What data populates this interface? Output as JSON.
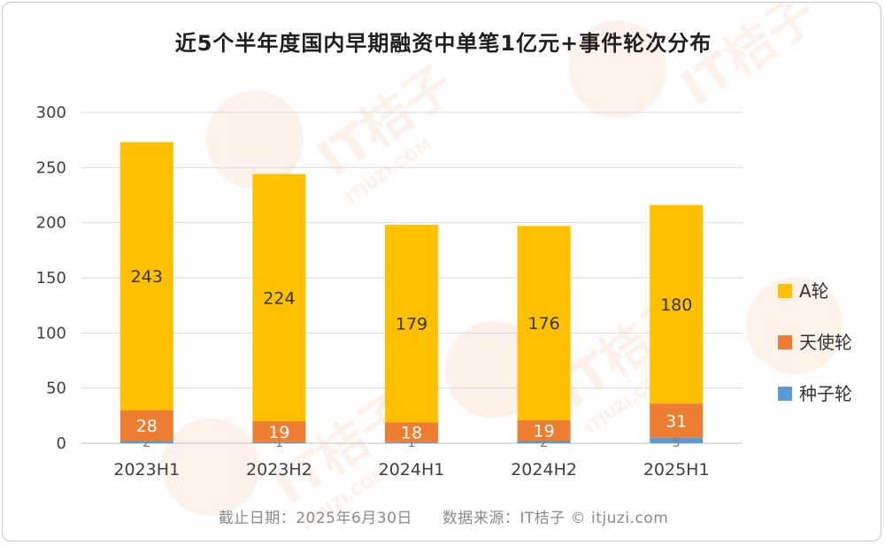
{
  "colors": {
    "a_round": "#FFC000",
    "angel_round": "#ED7D31",
    "seed_round": "#5B9BD5",
    "grid": "#d9d9d9",
    "axis_text": "#404040",
    "watermark": "#f26b21"
  },
  "watermark": {
    "brand": "IT桔子",
    "domain": "ITJUZI.COM"
  },
  "footer": {
    "date_text": "截止日期：2025年6月30日",
    "source_text": "数据来源：IT桔子 © itjuzi.com"
  },
  "chart_data": {
    "type": "bar",
    "stacked": true,
    "title": "近5个半年度国内早期融资中单笔1亿元+事件轮次分布",
    "xlabel": "",
    "ylabel": "",
    "ylim": [
      0,
      300
    ],
    "yticks": [
      "0",
      "50",
      "100",
      "150",
      "200",
      "250",
      "300"
    ],
    "grid": true,
    "legend_position": "right",
    "categories": [
      "2023H1",
      "2023H2",
      "2024H1",
      "2024H2",
      "2025H1"
    ],
    "series": [
      {
        "name": "种子轮",
        "values": [
          2,
          1,
          1,
          2,
          5
        ],
        "labels": [
          "2",
          "1",
          "1",
          "2",
          "5"
        ]
      },
      {
        "name": "天使轮",
        "values": [
          28,
          19,
          18,
          19,
          31
        ],
        "labels": [
          "28",
          "19",
          "18",
          "19",
          "31"
        ]
      },
      {
        "name": "A轮",
        "values": [
          243,
          224,
          179,
          176,
          180
        ],
        "labels": [
          "243",
          "224",
          "179",
          "176",
          "180"
        ]
      }
    ],
    "legend_order": [
      "A轮",
      "天使轮",
      "种子轮"
    ]
  }
}
